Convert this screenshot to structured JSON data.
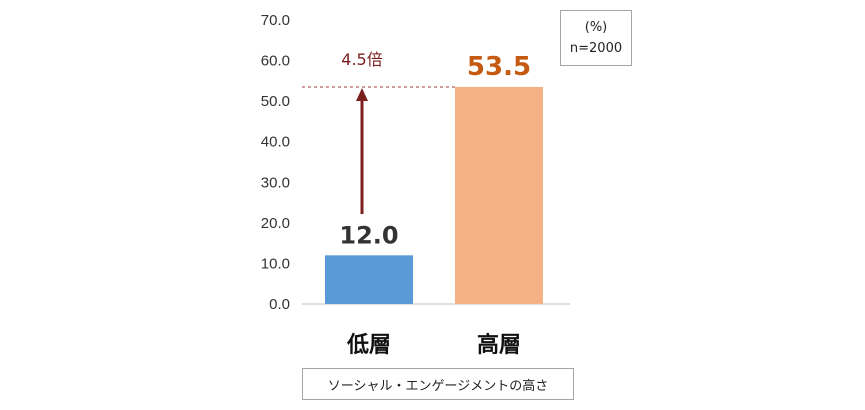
{
  "chart_data": {
    "type": "bar",
    "categories": [
      "低層",
      "高層"
    ],
    "values": [
      12.0,
      53.5
    ],
    "value_labels": [
      "12.0",
      "53.5"
    ],
    "ylim": [
      0,
      70
    ],
    "yticks": [
      "0.0",
      "10.0",
      "20.0",
      "30.0",
      "40.0",
      "50.0",
      "60.0",
      "70.0"
    ],
    "xlabel": "ソーシャル・エンゲージメントの高さ",
    "annotation": "4.5倍",
    "unit_note": "(%)",
    "sample_note": "n=2000",
    "colors": {
      "low_bar": "#5b9bd5",
      "high_bar": "#f4b183",
      "high_value_text": "#c55a11",
      "arrow": "#7b1f1f"
    },
    "grid": false
  }
}
